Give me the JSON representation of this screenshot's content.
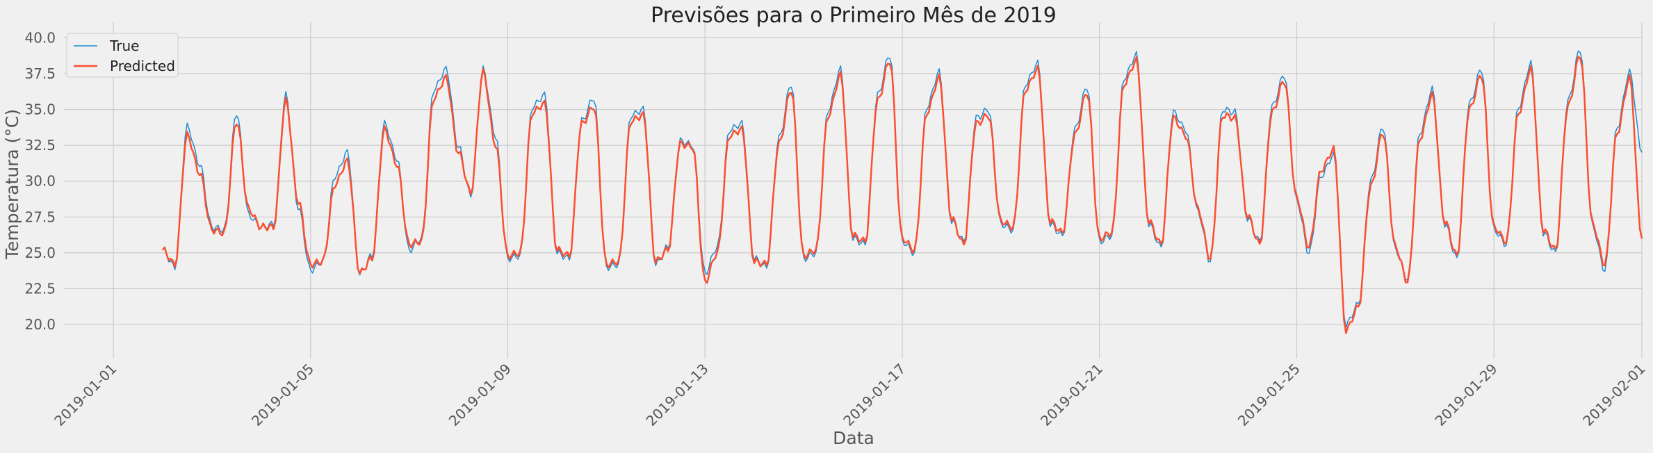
{
  "chart_data": {
    "type": "line",
    "title": "Previsões para o Primeiro Mês de 2019",
    "xlabel": "Data",
    "ylabel": "Temperatura (°C)",
    "xlim": [
      "2018-12-31",
      "2019-02-01"
    ],
    "ylim": [
      18.5,
      40.6
    ],
    "x_ticks": [
      "2019-01-01",
      "2019-01-05",
      "2019-01-09",
      "2019-01-13",
      "2019-01-17",
      "2019-01-21",
      "2019-01-25",
      "2019-01-29",
      "2019-02-01"
    ],
    "y_ticks": [
      20.0,
      22.5,
      25.0,
      27.5,
      30.0,
      32.5,
      35.0,
      37.5,
      40.0
    ],
    "grid": true,
    "legend": "top-left",
    "style": "fivethirtyeight",
    "x_start": "2019-01-02 00:00",
    "interval_hours": 6,
    "series": [
      {
        "name": "True",
        "color": "#1f8bd0",
        "values": [
          25.2,
          24.0,
          33.8,
          31.2,
          26.8,
          26.6,
          34.8,
          27.6,
          26.8,
          27.0,
          36.0,
          28.2,
          23.8,
          24.4,
          30.4,
          32.0,
          23.5,
          24.8,
          34.0,
          31.6,
          25.2,
          26.0,
          36.4,
          37.8,
          32.4,
          29.0,
          37.8,
          33.2,
          24.6,
          24.8,
          35.2,
          36.0,
          25.0,
          24.6,
          34.2,
          35.8,
          24.0,
          24.2,
          34.6,
          35.0,
          24.2,
          25.4,
          32.8,
          32.5,
          23.6,
          25.4,
          33.6,
          34.0,
          24.6,
          24.0,
          33.0,
          36.8,
          24.6,
          25.0,
          35.0,
          37.8,
          26.0,
          25.6,
          36.0,
          38.8,
          25.8,
          25.0,
          35.2,
          37.6,
          27.2,
          25.8,
          34.4,
          35.0,
          27.0,
          26.6,
          36.8,
          38.2,
          27.0,
          26.2,
          33.6,
          36.6,
          25.8,
          26.2,
          37.2,
          38.8,
          27.0,
          25.4,
          34.8,
          33.6,
          27.8,
          24.4,
          35.0,
          34.8,
          27.4,
          25.8,
          35.2,
          37.4,
          28.6,
          25.0,
          30.4,
          31.8,
          20.0,
          21.4,
          30.0,
          33.8,
          25.2,
          23.2,
          33.4,
          36.4,
          27.0,
          24.6,
          35.4,
          37.8,
          26.6,
          25.6,
          35.2,
          38.2,
          26.4,
          25.0,
          35.6,
          39.2,
          26.8,
          23.8,
          33.8,
          37.6,
          32.0
        ]
      },
      {
        "name": "Predicted",
        "color": "#fc4f30",
        "values": [
          25.2,
          24.2,
          33.2,
          30.6,
          26.6,
          26.4,
          34.2,
          28.0,
          26.8,
          26.8,
          35.6,
          28.6,
          24.2,
          24.4,
          29.8,
          31.4,
          23.6,
          24.6,
          33.6,
          31.2,
          25.6,
          25.8,
          35.8,
          37.2,
          32.0,
          29.2,
          37.6,
          32.6,
          24.8,
          25.0,
          34.8,
          35.4,
          25.2,
          24.8,
          34.0,
          35.2,
          24.2,
          24.4,
          34.2,
          34.6,
          24.4,
          25.2,
          32.6,
          32.4,
          23.0,
          25.0,
          33.2,
          33.6,
          24.4,
          24.2,
          32.6,
          36.4,
          24.8,
          25.2,
          34.6,
          37.4,
          26.2,
          25.8,
          35.6,
          38.4,
          26.0,
          25.2,
          34.8,
          37.2,
          27.4,
          25.6,
          34.0,
          34.6,
          27.2,
          26.8,
          36.4,
          37.8,
          27.2,
          26.4,
          33.2,
          36.2,
          26.0,
          26.4,
          36.8,
          38.4,
          27.2,
          25.6,
          34.4,
          33.2,
          28.0,
          24.6,
          34.6,
          34.4,
          27.6,
          25.6,
          34.8,
          37.0,
          28.8,
          25.4,
          30.8,
          32.2,
          19.6,
          21.2,
          29.6,
          33.4,
          25.4,
          23.0,
          33.0,
          36.0,
          27.2,
          24.8,
          35.0,
          37.4,
          26.8,
          25.8,
          34.8,
          37.8,
          26.6,
          25.2,
          35.2,
          38.8,
          27.0,
          24.2,
          33.4,
          37.2,
          26.0
        ]
      }
    ]
  }
}
